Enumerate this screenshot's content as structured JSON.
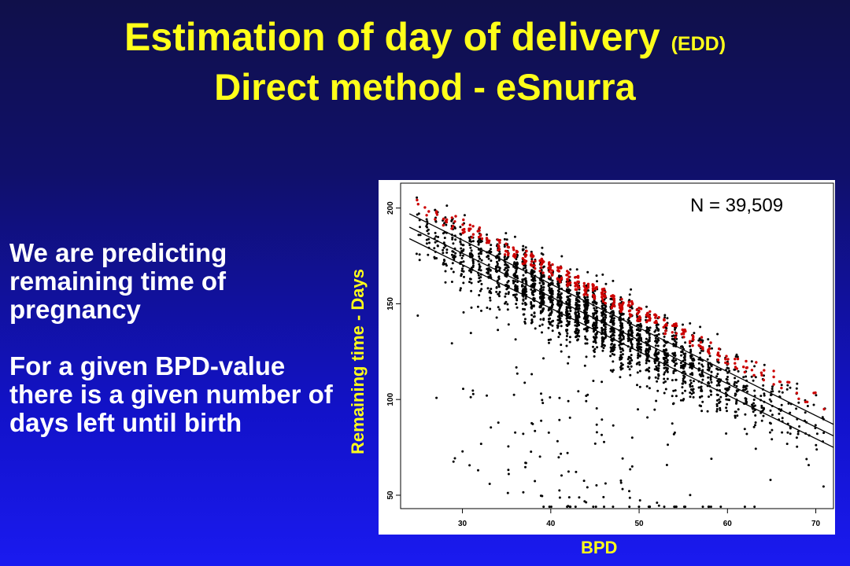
{
  "slide": {
    "title": "Estimation of day of delivery",
    "title_suffix": "(EDD)",
    "subtitle": "Direct method - eSnurra",
    "paragraph1": "We are predicting remaining time of pregnancy",
    "paragraph2": "For a given BPD-value there is a given number of days left until birth"
  },
  "colors": {
    "background": "#1414b4",
    "title_text": "#ffff1a",
    "body_text": "#ffffff",
    "points": "#000000",
    "highlight_points": "#cc0000",
    "lines": "#000000"
  },
  "chart_data": {
    "type": "scatter",
    "annotation": "N = 39,509",
    "xlabel": "BPD",
    "ylabel": "Remaining time - Days",
    "xlim": [
      23,
      72
    ],
    "ylim": [
      43,
      213
    ],
    "x_ticks": [
      30,
      40,
      50,
      60,
      70
    ],
    "y_ticks": [
      50,
      100,
      150,
      200
    ],
    "grid": false,
    "n": 39509,
    "bpd_bins": [
      25,
      26,
      27,
      28,
      29,
      30,
      31,
      32,
      33,
      34,
      35,
      36,
      37,
      38,
      39,
      40,
      41,
      42,
      43,
      44,
      45,
      46,
      47,
      48,
      49,
      50,
      51,
      52,
      53,
      54,
      55,
      56,
      57,
      58,
      59,
      60,
      61,
      62,
      63,
      64,
      65,
      66,
      67,
      68,
      69,
      70,
      71
    ],
    "point_density": [
      0.08,
      0.12,
      0.18,
      0.25,
      0.32,
      0.38,
      0.42,
      0.45,
      0.45,
      0.5,
      0.6,
      0.75,
      0.85,
      0.95,
      1,
      1,
      1,
      1,
      1,
      1,
      1,
      0.98,
      0.95,
      0.9,
      0.85,
      0.8,
      0.75,
      0.7,
      0.65,
      0.6,
      0.55,
      0.5,
      0.45,
      0.4,
      0.35,
      0.32,
      0.28,
      0.25,
      0.22,
      0.18,
      0.15,
      0.12,
      0.1,
      0.08,
      0.06,
      0.04,
      0.03
    ],
    "regression_lines": [
      {
        "x": [
          24,
          72
        ],
        "y": [
          197,
          87
        ]
      },
      {
        "x": [
          24,
          72
        ],
        "y": [
          190,
          81
        ]
      },
      {
        "x": [
          24,
          72
        ],
        "y": [
          184,
          75
        ]
      }
    ]
  }
}
